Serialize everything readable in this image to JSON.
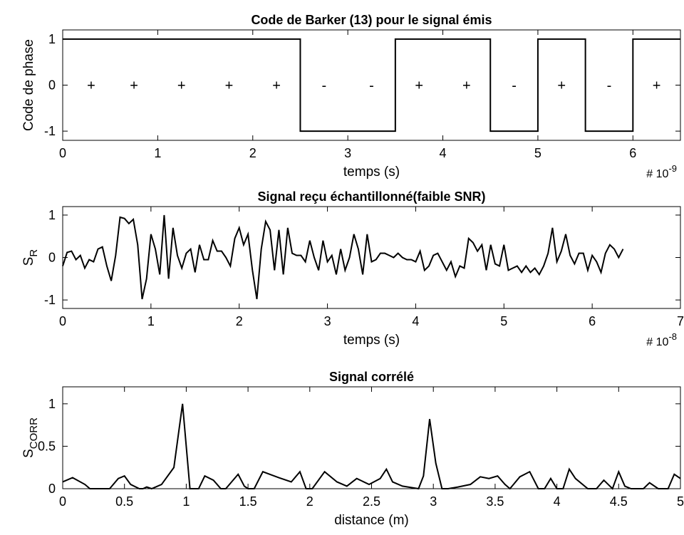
{
  "chart_data": [
    {
      "type": "line",
      "line_shape": "step",
      "title": "Code de Barker (13) pour le signal émis",
      "xlabel": "temps (s)",
      "x_exponent_base": "# 10",
      "x_exponent_power": "-9",
      "ylabel": "Code de phase",
      "xlim": [
        0,
        6.5
      ],
      "ylim": [
        -1.2,
        1.2
      ],
      "xticks": [
        0,
        1,
        2,
        3,
        4,
        5,
        6
      ],
      "xtick_labels": [
        "0",
        "1",
        "2",
        "3",
        "4",
        "5",
        "6"
      ],
      "yticks": [
        1,
        0,
        -1
      ],
      "ytick_labels": [
        "1",
        "0",
        "-1"
      ],
      "x": [
        0,
        2.5,
        2.5,
        3.5,
        3.5,
        4.5,
        4.5,
        5.0,
        5.0,
        5.5,
        5.5,
        6.0,
        6.0,
        6.5
      ],
      "y": [
        1,
        1,
        -1,
        -1,
        1,
        1,
        -1,
        -1,
        1,
        1,
        -1,
        -1,
        1,
        1
      ],
      "annotations": [
        {
          "x": 0.3,
          "text": "+"
        },
        {
          "x": 0.75,
          "text": "+"
        },
        {
          "x": 1.25,
          "text": "+"
        },
        {
          "x": 1.75,
          "text": "+"
        },
        {
          "x": 2.25,
          "text": "+"
        },
        {
          "x": 2.75,
          "text": "-"
        },
        {
          "x": 3.25,
          "text": "-"
        },
        {
          "x": 3.75,
          "text": "+"
        },
        {
          "x": 4.25,
          "text": "+"
        },
        {
          "x": 4.75,
          "text": "-"
        },
        {
          "x": 5.25,
          "text": "+"
        },
        {
          "x": 5.75,
          "text": "-"
        },
        {
          "x": 6.25,
          "text": "+"
        }
      ],
      "grid": false
    },
    {
      "type": "line",
      "title": "Signal reçu échantillonné(faible SNR)",
      "xlabel": "temps (s)",
      "x_exponent_base": "# 10",
      "x_exponent_power": "-8",
      "ylabel_main": "S",
      "ylabel_sub": "R",
      "xlim": [
        0,
        7
      ],
      "ylim": [
        -1.2,
        1.2
      ],
      "xticks": [
        0,
        1,
        2,
        3,
        4,
        5,
        6,
        7
      ],
      "xtick_labels": [
        "0",
        "1",
        "2",
        "3",
        "4",
        "5",
        "6",
        "7"
      ],
      "yticks": [
        1,
        0,
        -1
      ],
      "ytick_labels": [
        "1",
        "0",
        "-1"
      ],
      "x_start": 0,
      "x_step": 0.05,
      "y": [
        -0.2,
        0.12,
        0.15,
        -0.05,
        0.05,
        -0.25,
        -0.05,
        -0.1,
        0.2,
        0.25,
        -0.2,
        -0.55,
        0.05,
        0.95,
        0.92,
        0.8,
        0.9,
        0.3,
        -0.98,
        -0.5,
        0.55,
        0.2,
        -0.4,
        1.0,
        -0.5,
        0.7,
        0.05,
        -0.25,
        0.1,
        0.2,
        -0.35,
        0.3,
        -0.05,
        -0.05,
        0.4,
        0.15,
        0.15,
        0.0,
        -0.2,
        0.45,
        0.7,
        0.3,
        0.55,
        -0.3,
        -0.98,
        0.2,
        0.85,
        0.65,
        -0.3,
        0.65,
        -0.4,
        0.7,
        0.1,
        0.05,
        0.05,
        -0.1,
        0.4,
        0.0,
        -0.3,
        0.4,
        -0.1,
        0.05,
        -0.4,
        0.2,
        -0.3,
        0.0,
        0.55,
        0.2,
        -0.4,
        0.55,
        -0.1,
        -0.05,
        0.1,
        0.1,
        0.05,
        0.0,
        0.1,
        0.0,
        -0.05,
        -0.05,
        -0.1,
        0.15,
        -0.3,
        -0.2,
        0.05,
        0.1,
        -0.1,
        -0.3,
        -0.1,
        -0.45,
        -0.2,
        -0.25,
        0.45,
        0.35,
        0.15,
        0.3,
        -0.3,
        0.3,
        -0.15,
        -0.2,
        0.3,
        -0.3,
        -0.25,
        -0.2,
        -0.35,
        -0.2,
        -0.35,
        -0.25,
        -0.4,
        -0.2,
        0.1,
        0.7,
        -0.1,
        0.15,
        0.55,
        0.05,
        -0.15,
        0.1,
        0.1,
        -0.3,
        0.05,
        -0.1,
        -0.35,
        0.1,
        0.3,
        0.2,
        0.0,
        0.2
      ],
      "grid": false
    },
    {
      "type": "line",
      "title": "Signal corrélé",
      "xlabel": "distance (m)",
      "ylabel_main": "S",
      "ylabel_sub": "CORR",
      "xlim": [
        0,
        5
      ],
      "ylim": [
        0,
        1.2
      ],
      "xticks": [
        0,
        0.5,
        1,
        1.5,
        2,
        2.5,
        3,
        3.5,
        4,
        4.5,
        5
      ],
      "xtick_labels": [
        "0",
        "0.5",
        "1",
        "1.5",
        "2",
        "2.5",
        "3",
        "3.5",
        "4",
        "4.5",
        "5"
      ],
      "yticks": [
        1,
        0.5,
        0
      ],
      "ytick_labels": [
        "1",
        "0.5",
        "0"
      ],
      "x": [
        0,
        0.08,
        0.18,
        0.22,
        0.27,
        0.33,
        0.38,
        0.45,
        0.5,
        0.55,
        0.62,
        0.65,
        0.68,
        0.72,
        0.8,
        0.9,
        0.97,
        1.03,
        1.1,
        1.15,
        1.22,
        1.28,
        1.32,
        1.42,
        1.47,
        1.5,
        1.55,
        1.62,
        1.75,
        1.85,
        1.92,
        1.97,
        2.02,
        2.12,
        2.22,
        2.3,
        2.38,
        2.48,
        2.57,
        2.62,
        2.67,
        2.75,
        2.88,
        2.92,
        2.97,
        3.02,
        3.07,
        3.12,
        3.2,
        3.3,
        3.38,
        3.45,
        3.52,
        3.58,
        3.62,
        3.7,
        3.78,
        3.85,
        3.9,
        3.95,
        4.0,
        4.05,
        4.1,
        4.15,
        4.25,
        4.32,
        4.38,
        4.45,
        4.5,
        4.55,
        4.6,
        4.7,
        4.75,
        4.82,
        4.9,
        4.95,
        5.0
      ],
      "y": [
        0.08,
        0.13,
        0.05,
        0.0,
        0.0,
        0.0,
        0.0,
        0.12,
        0.15,
        0.05,
        0.0,
        0.0,
        0.02,
        0.0,
        0.05,
        0.25,
        1.0,
        0.0,
        0.0,
        0.15,
        0.1,
        0.0,
        0.0,
        0.17,
        0.03,
        0.0,
        0.0,
        0.2,
        0.13,
        0.08,
        0.2,
        0.0,
        0.0,
        0.2,
        0.08,
        0.03,
        0.12,
        0.05,
        0.12,
        0.23,
        0.08,
        0.03,
        0.0,
        0.15,
        0.82,
        0.3,
        0.0,
        0.0,
        0.02,
        0.05,
        0.14,
        0.12,
        0.15,
        0.05,
        0.0,
        0.14,
        0.2,
        0.0,
        0.0,
        0.12,
        0.0,
        0.0,
        0.23,
        0.12,
        0.0,
        0.0,
        0.1,
        0.0,
        0.2,
        0.03,
        0.0,
        0.0,
        0.07,
        0.0,
        0.0,
        0.17,
        0.12
      ],
      "grid": false
    }
  ]
}
